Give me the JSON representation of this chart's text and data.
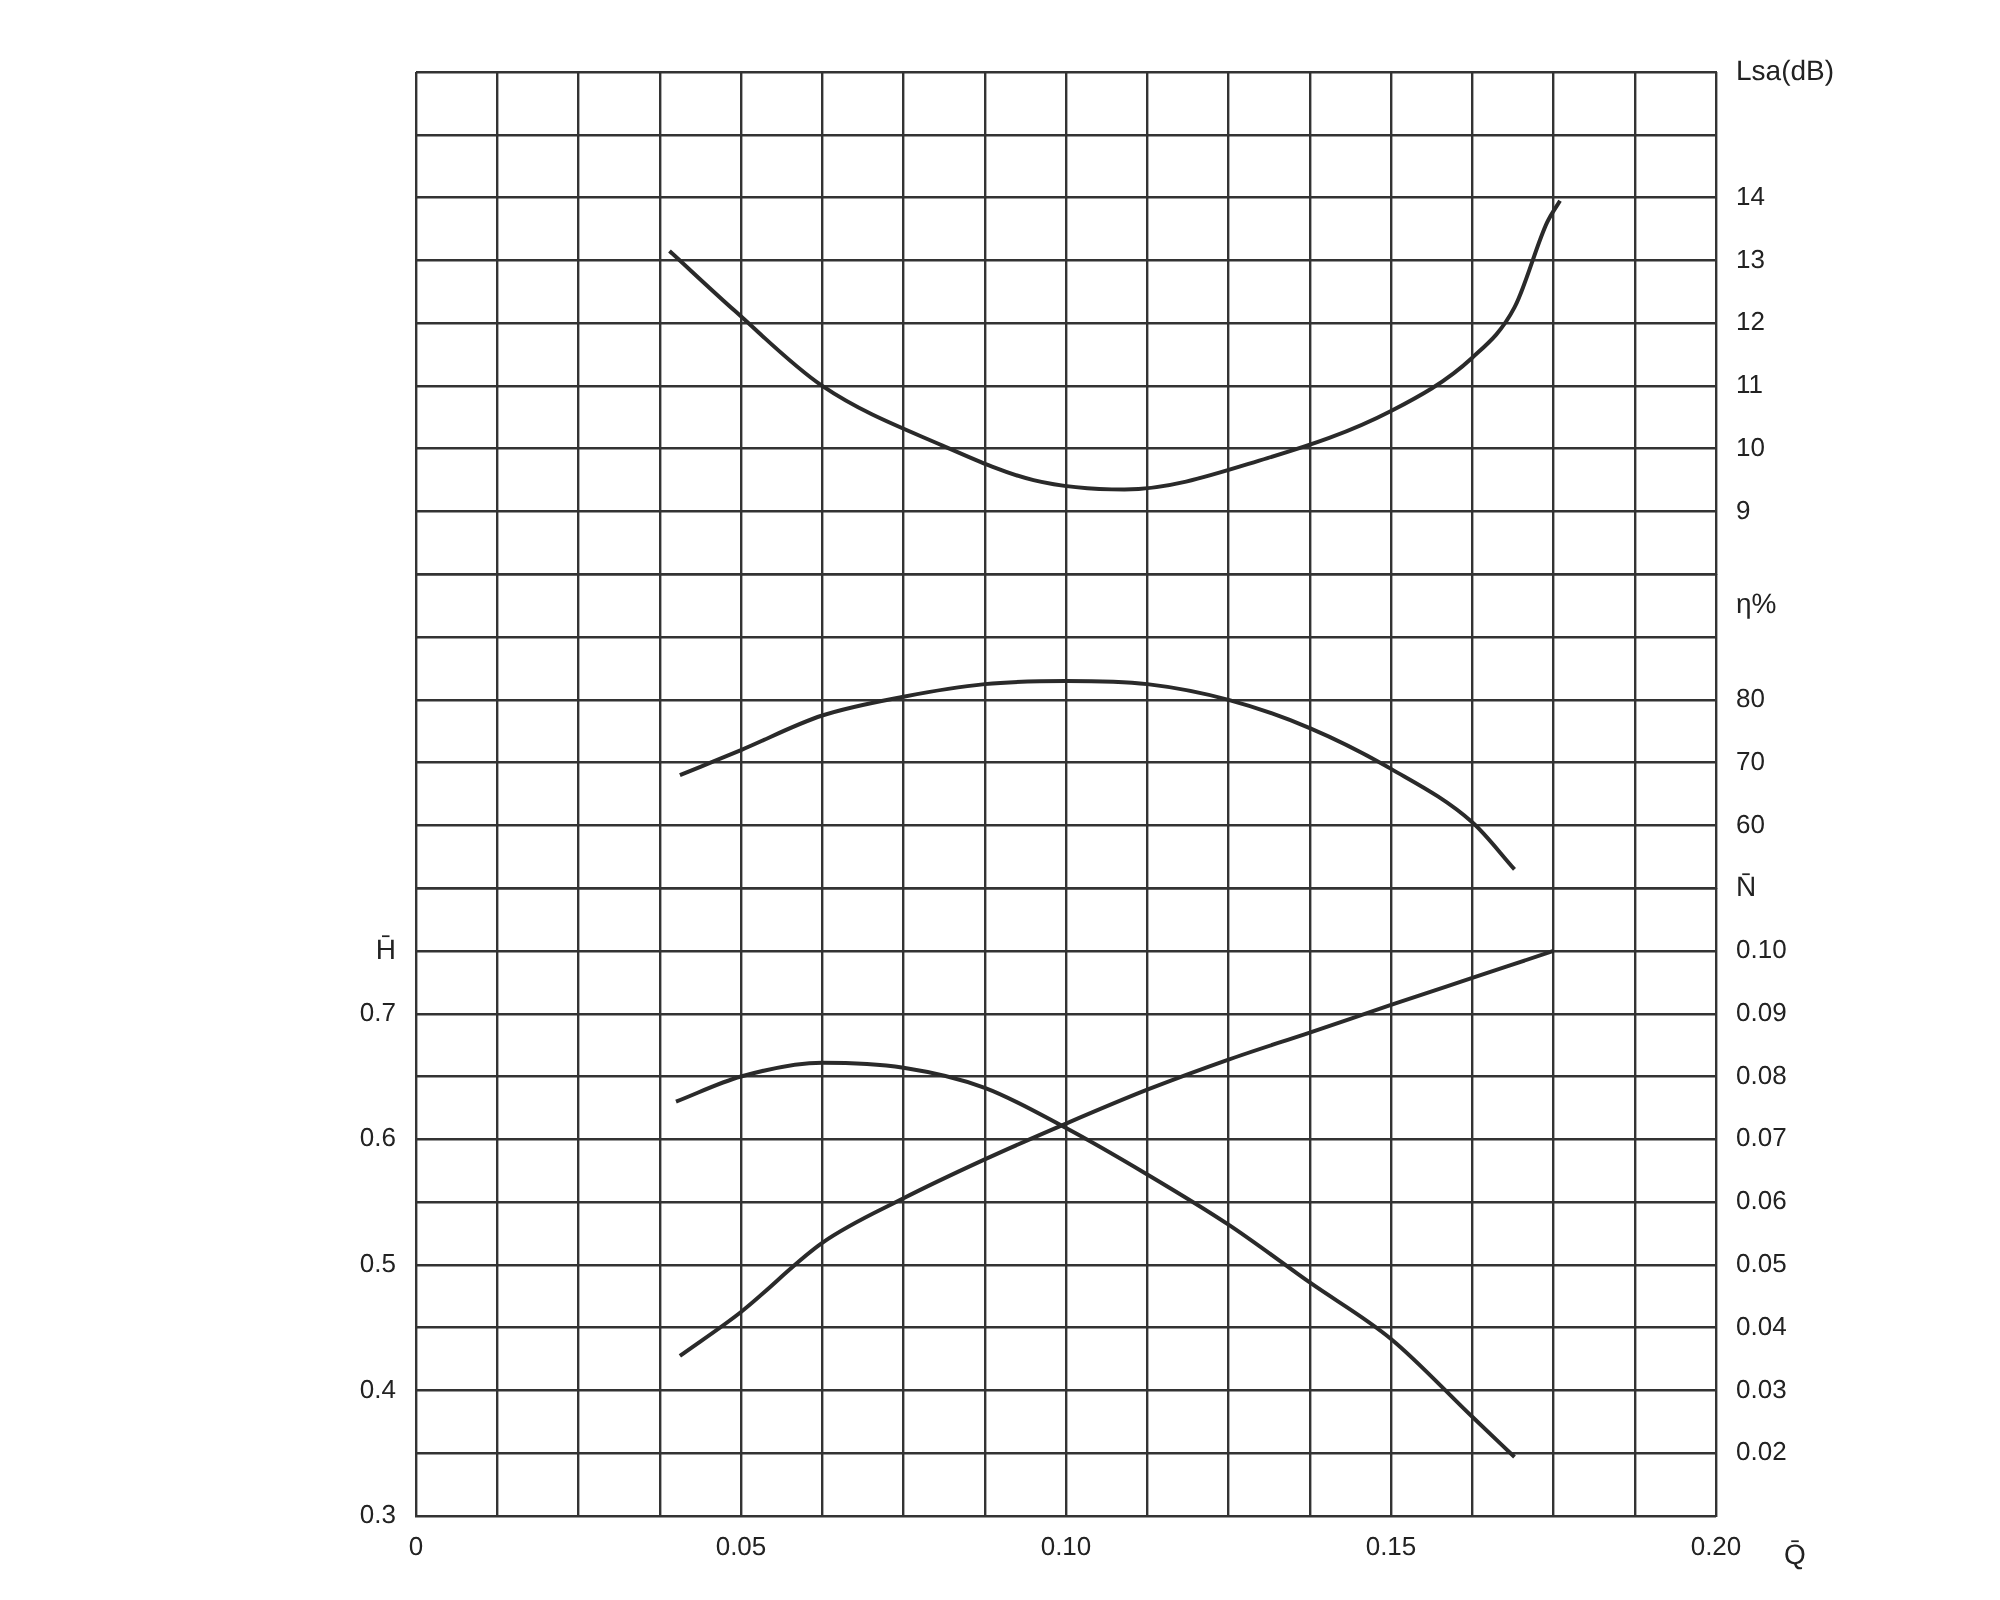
{
  "chart_data": [
    {
      "type": "line",
      "ylabel": "Lsa(dB)",
      "xlim": [
        0,
        0.2
      ],
      "xticks": [
        0,
        0.0125,
        0.025,
        0.0375,
        0.05,
        0.0625,
        0.075,
        0.0875,
        0.1,
        0.1125,
        0.125,
        0.1375,
        0.15,
        0.1625,
        0.175,
        0.1875,
        0.2
      ],
      "ylim": [
        8,
        16
      ],
      "yticks": [
        {
          "value": 8,
          "label": null
        },
        9,
        10,
        11,
        12,
        13,
        14,
        {
          "value": 15,
          "label": null
        },
        {
          "value": 16,
          "label": null
        }
      ],
      "tick_labels": "y",
      "grid": true,
      "legend": false,
      "marker": "none",
      "line_style": "solid",
      "series": [
        {
          "color": "#2a2a2a",
          "x": [
            0.039,
            0.049,
            0.0625,
            0.081,
            0.095,
            0.109,
            0.131,
            0.15,
            0.1625,
            0.169,
            0.174,
            0.176
          ],
          "values": [
            13.15,
            12.2,
            11.0,
            10.05,
            9.5,
            9.35,
            9.85,
            10.6,
            11.45,
            12.25,
            13.6,
            13.95
          ]
        }
      ]
    },
    {
      "type": "line",
      "ylabel": "η%",
      "xlim": [
        0,
        0.2
      ],
      "xticks": [
        0,
        0.0125,
        0.025,
        0.0375,
        0.05,
        0.0625,
        0.075,
        0.0875,
        0.1,
        0.1125,
        0.125,
        0.1375,
        0.15,
        0.1625,
        0.175,
        0.1875,
        0.2
      ],
      "ylim": [
        50,
        100
      ],
      "yticks": [
        {
          "value": 50,
          "label": null
        },
        60,
        70,
        80,
        {
          "value": 90,
          "label": null
        },
        {
          "value": 100,
          "label": null
        }
      ],
      "tick_labels": "y",
      "grid": true,
      "legend": false,
      "marker": "none",
      "line_style": "solid",
      "series": [
        {
          "color": "#2a2a2a",
          "x": [
            0.0406,
            0.05,
            0.0625,
            0.075,
            0.0875,
            0.1,
            0.1125,
            0.125,
            0.1375,
            0.15,
            0.1625,
            0.169
          ],
          "values": [
            68,
            72,
            77.5,
            80.5,
            82.5,
            83,
            82.5,
            80,
            75.5,
            69,
            60.5,
            53
          ]
        }
      ]
    },
    {
      "type": "line",
      "xlabel": "Q̄",
      "ylabel": "H̄",
      "y2label": "N̄",
      "xlim": [
        0,
        0.2
      ],
      "xticks": [
        0,
        {
          "value": 0.0125,
          "label": null
        },
        {
          "value": 0.025,
          "label": null
        },
        {
          "value": 0.0375,
          "label": null
        },
        0.05,
        {
          "value": 0.0625,
          "label": null
        },
        {
          "value": 0.075,
          "label": null
        },
        {
          "value": 0.0875,
          "label": null
        },
        {
          "value": 0.1,
          "label": "0.10"
        },
        {
          "value": 0.1125,
          "label": null
        },
        {
          "value": 0.125,
          "label": null
        },
        {
          "value": 0.1375,
          "label": null
        },
        0.15,
        {
          "value": 0.1625,
          "label": null
        },
        {
          "value": 0.175,
          "label": null
        },
        {
          "value": 0.1875,
          "label": null
        },
        {
          "value": 0.2,
          "label": "0.20"
        }
      ],
      "ylim": [
        0.3,
        0.8
      ],
      "yticks": [
        0.3,
        {
          "value": 0.35,
          "label": null
        },
        0.4,
        {
          "value": 0.45,
          "label": null
        },
        0.5,
        {
          "value": 0.55,
          "label": null
        },
        0.6,
        {
          "value": 0.65,
          "label": null
        },
        0.7,
        {
          "value": 0.75,
          "label": null
        },
        {
          "value": 0.8,
          "label": null
        }
      ],
      "y2lim": [
        0.01,
        0.11
      ],
      "y2ticks": [
        0.02,
        0.03,
        0.04,
        0.05,
        0.06,
        0.07,
        0.08,
        0.09,
        {
          "value": 0.1,
          "label": "0.10"
        }
      ],
      "grid": true,
      "legend": false,
      "marker": "none",
      "line_style": "solid",
      "series": [
        {
          "color": "#2a2a2a",
          "x": [
            0.04,
            0.05,
            0.0625,
            0.075,
            0.0875,
            0.1,
            0.1125,
            0.125,
            0.1375,
            0.15,
            0.1625,
            0.169
          ],
          "values": [
            0.63,
            0.65,
            0.661,
            0.657,
            0.641,
            0.609,
            0.572,
            0.532,
            0.486,
            0.441,
            0.379,
            0.347
          ]
        },
        {
          "color": "#2a2a2a",
          "axis": "y2",
          "x": [
            0.0406,
            0.05,
            0.0625,
            0.075,
            0.0875,
            0.1,
            0.1125,
            0.125,
            0.1375,
            0.15,
            0.1625,
            0.175
          ],
          "values": [
            0.0355,
            0.0425,
            0.0535,
            0.0606,
            0.0668,
            0.0725,
            0.0779,
            0.0827,
            0.087,
            0.0914,
            0.0957,
            0.1
          ]
        }
      ]
    }
  ]
}
